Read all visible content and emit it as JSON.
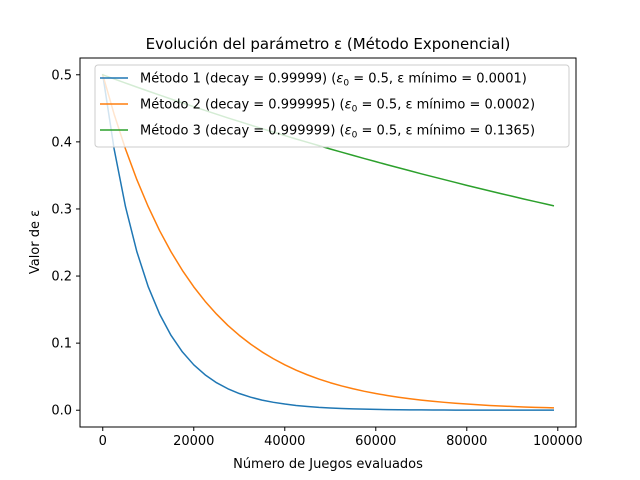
{
  "chart_data": {
    "type": "line",
    "title": "Evolución del parámetro ε (Método Exponencial)",
    "xlabel": "Número de Juegos evaluados",
    "ylabel": "Valor de ε",
    "xlim": [
      -5000,
      104000
    ],
    "ylim": [
      -0.025,
      0.525
    ],
    "xticks": [
      0,
      20000,
      40000,
      60000,
      80000,
      100000
    ],
    "yticks": [
      0.0,
      0.1,
      0.2,
      0.3,
      0.4,
      0.5
    ],
    "xtick_labels": [
      "0",
      "20000",
      "40000",
      "60000",
      "80000",
      "100000"
    ],
    "ytick_labels": [
      "0.0",
      "0.1",
      "0.2",
      "0.3",
      "0.4",
      "0.5"
    ],
    "grid": false,
    "legend_position": "upper-right",
    "x": [
      0,
      2500,
      5000,
      7500,
      10000,
      12500,
      15000,
      17500,
      20000,
      22500,
      25000,
      27500,
      30000,
      32500,
      35000,
      37500,
      40000,
      42500,
      45000,
      47500,
      50000,
      52500,
      55000,
      57500,
      60000,
      62500,
      65000,
      67500,
      70000,
      72500,
      75000,
      77500,
      80000,
      82500,
      85000,
      87500,
      90000,
      92500,
      95000,
      97500,
      99000
    ],
    "series": [
      {
        "name": "Método 1 (decay = 0.99999) (ε₀ = 0.5, ε mínimo = 0.0001)",
        "legend_label": "Método 1 (decay = 0.99999) (",
        "legend_eps": "ε",
        "legend_sub": "0",
        "legend_rest": " = 0.5, ε mínimo = 0.0001)",
        "color": "#1f77b4",
        "values": [
          0.5,
          0.3894,
          0.3033,
          0.2362,
          0.1839,
          0.1433,
          0.1116,
          0.0869,
          0.0677,
          0.0527,
          0.041,
          0.032,
          0.0249,
          0.0194,
          0.0151,
          0.0118,
          0.0092,
          0.0071,
          0.0056,
          0.0043,
          0.0034,
          0.0026,
          0.002,
          0.0016,
          0.0012,
          0.00097,
          0.00075,
          0.00059,
          0.00046,
          0.00036,
          0.00028,
          0.00022,
          0.00017,
          0.00013,
          0.0001,
          0.0001,
          0.0001,
          0.0001,
          0.0001,
          0.0001,
          0.0001
        ]
      },
      {
        "name": "Método 2 (decay = 0.999995) (ε₀ = 0.5, ε mínimo = 0.0002)",
        "legend_label": "Método 2 (decay = 0.999995) (",
        "legend_eps": "ε",
        "legend_sub": "0",
        "legend_rest": " = 0.5, ε mínimo = 0.0002)",
        "color": "#ff7f0e",
        "values": [
          0.5,
          0.4412,
          0.3894,
          0.3436,
          0.3033,
          0.2676,
          0.2362,
          0.2084,
          0.1839,
          0.1623,
          0.1433,
          0.1264,
          0.1116,
          0.0985,
          0.0869,
          0.0767,
          0.0677,
          0.0597,
          0.0527,
          0.0465,
          0.041,
          0.0362,
          0.032,
          0.0282,
          0.0249,
          0.022,
          0.0194,
          0.0171,
          0.0151,
          0.0133,
          0.0118,
          0.0104,
          0.0092,
          0.0081,
          0.0071,
          0.0063,
          0.0056,
          0.0049,
          0.0043,
          0.0038,
          0.0035
        ]
      },
      {
        "name": "Método 3 (decay = 0.999999) (ε₀ = 0.5, ε mínimo = 0.1365)",
        "legend_label": "Método 3 (decay = 0.999999) (",
        "legend_eps": "ε",
        "legend_sub": "0",
        "legend_rest": " = 0.5, ε mínimo = 0.1365)",
        "color": "#2ca02c",
        "values": [
          0.5,
          0.4938,
          0.4877,
          0.4816,
          0.4756,
          0.4697,
          0.4639,
          0.4581,
          0.4524,
          0.4468,
          0.4412,
          0.4357,
          0.4304,
          0.425,
          0.4197,
          0.4145,
          0.4094,
          0.4043,
          0.3993,
          0.3944,
          0.3894,
          0.3846,
          0.3799,
          0.3751,
          0.3705,
          0.3659,
          0.3614,
          0.3569,
          0.3524,
          0.3481,
          0.3438,
          0.3395,
          0.3352,
          0.3311,
          0.327,
          0.3229,
          0.3189,
          0.3149,
          0.311,
          0.3072,
          0.3049
        ]
      }
    ]
  }
}
